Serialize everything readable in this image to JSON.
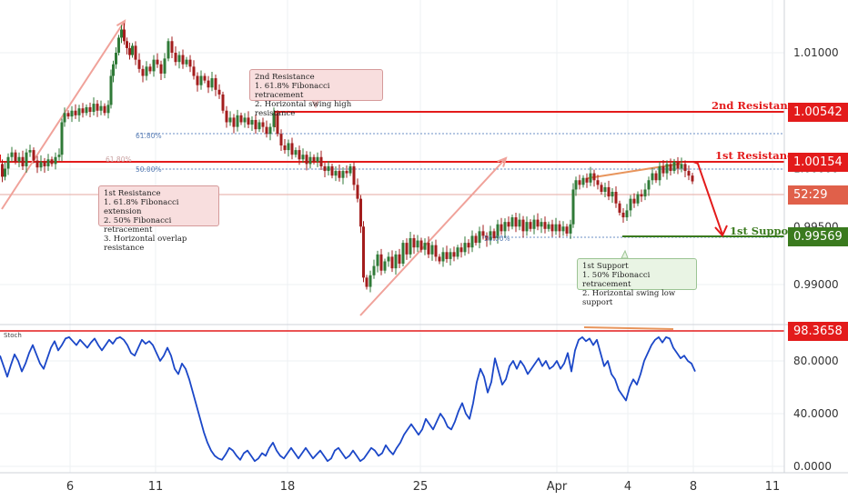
{
  "chart_data": {
    "type": "candlestick",
    "price_axis": {
      "ticks": [
        "1.01000",
        "1.00000",
        "0.99500",
        "0.99000"
      ]
    },
    "stoch_axis": {
      "ticks": [
        "80.0000",
        "40.0000",
        "0.0000"
      ]
    },
    "x_axis": {
      "ticks": [
        "6",
        "11",
        "18",
        "25",
        "Apr",
        "4",
        "8",
        "11"
      ]
    },
    "levels": {
      "resistance2": {
        "label": "2nd Resistance",
        "value": "1.00542",
        "color": "#e31b1b"
      },
      "resistance1": {
        "label": "1st Resistance",
        "value": "1.00154",
        "color": "#e31b1b"
      },
      "support1": {
        "label": "1st Support",
        "value": "0.99569",
        "color": "#3a7a1e"
      },
      "countdown": {
        "value": "52:29",
        "color": "#e0604a"
      },
      "stoch_level": {
        "value": "98.3658",
        "color": "#e31b1b"
      }
    },
    "fib_labels": [
      "61.80%",
      "50.00%",
      "61.80%",
      "50.00%"
    ],
    "annotations": {
      "res2": "2nd Resistance\n1. 61.8% Fibonacci retracement\n2. Horizontal swing high resistance",
      "res1": "1st Resistance\n1. 61.8% Fibonacci extension\n2. 50% Fibonacci retracement\n3. Horizontal overlap resistance",
      "sup1": "1st Support\n1. 50% Fibonacci retracement\n2. Horizontal swing low support"
    },
    "stoch_title": "Stoch",
    "price_path": [
      [
        0,
        1.0004
      ],
      [
        3,
        0.9993
      ],
      [
        6,
        1.0
      ],
      [
        10,
        1.001
      ],
      [
        14,
        1.0014
      ],
      [
        18,
        1.0006
      ],
      [
        22,
        1.001
      ],
      [
        26,
        1.0002
      ],
      [
        30,
        1.0014
      ],
      [
        34,
        1.0016
      ],
      [
        38,
        1.0007
      ],
      [
        42,
        1.0001
      ],
      [
        46,
        1.0006
      ],
      [
        50,
        1.0002
      ],
      [
        54,
        1.0008
      ],
      [
        58,
        1.0004
      ],
      [
        62,
        1.001
      ],
      [
        66,
        1.0012
      ],
      [
        68,
        1.004
      ],
      [
        72,
        1.0048
      ],
      [
        76,
        1.0045
      ],
      [
        80,
        1.005
      ],
      [
        84,
        1.0046
      ],
      [
        88,
        1.0052
      ],
      [
        92,
        1.0048
      ],
      [
        96,
        1.0053
      ],
      [
        100,
        1.0049
      ],
      [
        104,
        1.0056
      ],
      [
        108,
        1.005
      ],
      [
        112,
        1.0054
      ],
      [
        116,
        1.0048
      ],
      [
        120,
        1.0055
      ],
      [
        122,
        1.008
      ],
      [
        125,
        1.009
      ],
      [
        128,
        1.01
      ],
      [
        131,
        1.0113
      ],
      [
        134,
        1.012
      ],
      [
        137,
        1.011
      ],
      [
        140,
        1.0104
      ],
      [
        143,
        1.0098
      ],
      [
        146,
        1.0106
      ],
      [
        150,
        1.0094
      ],
      [
        154,
        1.0086
      ],
      [
        158,
        1.008
      ],
      [
        162,
        1.0088
      ],
      [
        166,
        1.0084
      ],
      [
        170,
        1.0094
      ],
      [
        174,
        1.009
      ],
      [
        178,
        1.0082
      ],
      [
        182,
        1.0095
      ],
      [
        186,
        1.011
      ],
      [
        190,
        1.01
      ],
      [
        194,
        1.0092
      ],
      [
        198,
        1.0098
      ],
      [
        202,
        1.009
      ],
      [
        206,
        1.0094
      ],
      [
        210,
        1.0088
      ],
      [
        214,
        1.008
      ],
      [
        218,
        1.0072
      ],
      [
        222,
        1.008
      ],
      [
        226,
        1.0076
      ],
      [
        230,
        1.007
      ],
      [
        234,
        1.0078
      ],
      [
        238,
        1.0068
      ],
      [
        242,
        1.0064
      ],
      [
        246,
        1.005
      ],
      [
        250,
        1.004
      ],
      [
        254,
        1.0044
      ],
      [
        258,
        1.0036
      ],
      [
        262,
        1.0046
      ],
      [
        266,
        1.004
      ],
      [
        270,
        1.0044
      ],
      [
        274,
        1.0038
      ],
      [
        278,
        1.0042
      ],
      [
        282,
        1.0034
      ],
      [
        286,
        1.004
      ],
      [
        290,
        1.0036
      ],
      [
        294,
        1.003
      ],
      [
        298,
        1.0036
      ],
      [
        302,
        1.0048
      ],
      [
        306,
        1.003
      ],
      [
        310,
        1.002
      ],
      [
        314,
        1.0016
      ],
      [
        318,
        1.0022
      ],
      [
        322,
        1.0012
      ],
      [
        326,
        1.0016
      ],
      [
        330,
        1.0008
      ],
      [
        334,
        1.0012
      ],
      [
        338,
        1.0004
      ],
      [
        342,
        1.001
      ],
      [
        346,
        1.0006
      ],
      [
        350,
        1.001
      ],
      [
        354,
        1.0002
      ],
      [
        358,
        0.9998
      ],
      [
        362,
        1.0002
      ],
      [
        366,
        0.9994
      ],
      [
        370,
        0.9998
      ],
      [
        374,
        0.9992
      ],
      [
        378,
        0.9998
      ],
      [
        382,
        0.9996
      ],
      [
        386,
        1.0002
      ],
      [
        390,
        0.9986
      ],
      [
        394,
        0.9974
      ],
      [
        397,
        0.995
      ],
      [
        400,
        0.9906
      ],
      [
        404,
        0.9898
      ],
      [
        408,
        0.9908
      ],
      [
        412,
        0.9916
      ],
      [
        416,
        0.9926
      ],
      [
        420,
        0.9912
      ],
      [
        424,
        0.992
      ],
      [
        428,
        0.9924
      ],
      [
        432,
        0.9914
      ],
      [
        436,
        0.9926
      ],
      [
        440,
        0.9918
      ],
      [
        444,
        0.9936
      ],
      [
        448,
        0.9926
      ],
      [
        452,
        0.994
      ],
      [
        456,
        0.9932
      ],
      [
        460,
        0.9938
      ],
      [
        464,
        0.993
      ],
      [
        468,
        0.9936
      ],
      [
        472,
        0.9926
      ],
      [
        476,
        0.9934
      ],
      [
        480,
        0.9924
      ],
      [
        484,
        0.992
      ],
      [
        488,
        0.9928
      ],
      [
        492,
        0.9922
      ],
      [
        496,
        0.9928
      ],
      [
        500,
        0.9924
      ],
      [
        504,
        0.9932
      ],
      [
        508,
        0.9928
      ],
      [
        512,
        0.9936
      ],
      [
        516,
        0.9932
      ],
      [
        520,
        0.9942
      ],
      [
        524,
        0.9936
      ],
      [
        528,
        0.9946
      ],
      [
        532,
        0.9942
      ],
      [
        536,
        0.9938
      ],
      [
        540,
        0.9946
      ],
      [
        544,
        0.994
      ],
      [
        548,
        0.9952
      ],
      [
        552,
        0.9946
      ],
      [
        556,
        0.9954
      ],
      [
        560,
        0.995
      ],
      [
        564,
        0.9958
      ],
      [
        568,
        0.995
      ],
      [
        572,
        0.9956
      ],
      [
        576,
        0.9946
      ],
      [
        580,
        0.9954
      ],
      [
        584,
        0.9948
      ],
      [
        588,
        0.9956
      ],
      [
        592,
        0.995
      ],
      [
        596,
        0.9954
      ],
      [
        600,
        0.9948
      ],
      [
        604,
        0.9952
      ],
      [
        608,
        0.9946
      ],
      [
        612,
        0.9952
      ],
      [
        616,
        0.9946
      ],
      [
        620,
        0.995
      ],
      [
        624,
        0.9944
      ],
      [
        628,
        0.9952
      ],
      [
        630,
        0.9982
      ],
      [
        634,
        0.999
      ],
      [
        638,
        0.9986
      ],
      [
        642,
        0.9992
      ],
      [
        646,
        0.9988
      ],
      [
        650,
        0.9996
      ],
      [
        654,
        0.999
      ],
      [
        658,
        0.9986
      ],
      [
        662,
        0.998
      ],
      [
        666,
        0.9984
      ],
      [
        670,
        0.9976
      ],
      [
        674,
        0.998
      ],
      [
        678,
        0.997
      ],
      [
        682,
        0.9962
      ],
      [
        686,
        0.9958
      ],
      [
        690,
        0.9964
      ],
      [
        694,
        0.9974
      ],
      [
        698,
        0.997
      ],
      [
        702,
        0.9978
      ],
      [
        706,
        0.9976
      ],
      [
        710,
        0.9982
      ],
      [
        714,
        0.999
      ],
      [
        718,
        0.9996
      ],
      [
        722,
        0.999
      ],
      [
        726,
        1.0002
      ],
      [
        730,
        0.9996
      ],
      [
        734,
        1.0004
      ],
      [
        738,
        0.9998
      ],
      [
        742,
        1.0006
      ],
      [
        746,
        1.0
      ],
      [
        750,
        1.0004
      ],
      [
        754,
        0.9998
      ],
      [
        758,
        0.9994
      ],
      [
        762,
        0.9989
      ]
    ],
    "stoch_path": [
      [
        0,
        84
      ],
      [
        4,
        76
      ],
      [
        8,
        68
      ],
      [
        12,
        77
      ],
      [
        16,
        85
      ],
      [
        20,
        80
      ],
      [
        24,
        72
      ],
      [
        28,
        78
      ],
      [
        32,
        86
      ],
      [
        36,
        92
      ],
      [
        40,
        85
      ],
      [
        44,
        78
      ],
      [
        48,
        74
      ],
      [
        52,
        82
      ],
      [
        56,
        90
      ],
      [
        60,
        95
      ],
      [
        64,
        88
      ],
      [
        68,
        92
      ],
      [
        72,
        97
      ],
      [
        76,
        98
      ],
      [
        80,
        95
      ],
      [
        84,
        92
      ],
      [
        88,
        96
      ],
      [
        92,
        93
      ],
      [
        96,
        90
      ],
      [
        100,
        94
      ],
      [
        104,
        97
      ],
      [
        108,
        92
      ],
      [
        112,
        88
      ],
      [
        116,
        92
      ],
      [
        120,
        96
      ],
      [
        124,
        93
      ],
      [
        128,
        97
      ],
      [
        132,
        98
      ],
      [
        136,
        96
      ],
      [
        140,
        92
      ],
      [
        144,
        86
      ],
      [
        148,
        84
      ],
      [
        152,
        90
      ],
      [
        156,
        96
      ],
      [
        160,
        93
      ],
      [
        164,
        95
      ],
      [
        168,
        92
      ],
      [
        172,
        86
      ],
      [
        176,
        80
      ],
      [
        180,
        84
      ],
      [
        184,
        90
      ],
      [
        188,
        84
      ],
      [
        192,
        74
      ],
      [
        196,
        70
      ],
      [
        200,
        78
      ],
      [
        204,
        74
      ],
      [
        208,
        66
      ],
      [
        212,
        56
      ],
      [
        216,
        46
      ],
      [
        220,
        36
      ],
      [
        224,
        26
      ],
      [
        228,
        18
      ],
      [
        232,
        12
      ],
      [
        236,
        8
      ],
      [
        240,
        6
      ],
      [
        244,
        5
      ],
      [
        248,
        9
      ],
      [
        252,
        14
      ],
      [
        256,
        12
      ],
      [
        260,
        8
      ],
      [
        264,
        5
      ],
      [
        268,
        10
      ],
      [
        272,
        12
      ],
      [
        276,
        8
      ],
      [
        280,
        4
      ],
      [
        284,
        6
      ],
      [
        288,
        10
      ],
      [
        292,
        8
      ],
      [
        296,
        14
      ],
      [
        300,
        18
      ],
      [
        304,
        12
      ],
      [
        308,
        8
      ],
      [
        312,
        6
      ],
      [
        316,
        10
      ],
      [
        320,
        14
      ],
      [
        324,
        10
      ],
      [
        328,
        6
      ],
      [
        332,
        10
      ],
      [
        336,
        14
      ],
      [
        340,
        10
      ],
      [
        344,
        6
      ],
      [
        348,
        9
      ],
      [
        352,
        12
      ],
      [
        356,
        8
      ],
      [
        360,
        4
      ],
      [
        364,
        6
      ],
      [
        368,
        12
      ],
      [
        372,
        14
      ],
      [
        376,
        10
      ],
      [
        380,
        6
      ],
      [
        384,
        8
      ],
      [
        388,
        12
      ],
      [
        392,
        8
      ],
      [
        396,
        4
      ],
      [
        400,
        6
      ],
      [
        404,
        10
      ],
      [
        408,
        14
      ],
      [
        412,
        12
      ],
      [
        416,
        8
      ],
      [
        420,
        10
      ],
      [
        424,
        16
      ],
      [
        428,
        12
      ],
      [
        432,
        9
      ],
      [
        436,
        14
      ],
      [
        440,
        18
      ],
      [
        444,
        24
      ],
      [
        448,
        28
      ],
      [
        452,
        32
      ],
      [
        456,
        28
      ],
      [
        460,
        24
      ],
      [
        464,
        28
      ],
      [
        468,
        36
      ],
      [
        472,
        32
      ],
      [
        476,
        28
      ],
      [
        480,
        34
      ],
      [
        484,
        40
      ],
      [
        488,
        36
      ],
      [
        492,
        30
      ],
      [
        496,
        28
      ],
      [
        500,
        34
      ],
      [
        504,
        42
      ],
      [
        508,
        48
      ],
      [
        512,
        40
      ],
      [
        516,
        36
      ],
      [
        520,
        48
      ],
      [
        524,
        64
      ],
      [
        528,
        74
      ],
      [
        532,
        68
      ],
      [
        536,
        56
      ],
      [
        540,
        64
      ],
      [
        544,
        82
      ],
      [
        548,
        72
      ],
      [
        552,
        62
      ],
      [
        556,
        66
      ],
      [
        560,
        76
      ],
      [
        564,
        80
      ],
      [
        568,
        74
      ],
      [
        572,
        80
      ],
      [
        576,
        76
      ],
      [
        580,
        70
      ],
      [
        584,
        74
      ],
      [
        588,
        78
      ],
      [
        592,
        82
      ],
      [
        596,
        76
      ],
      [
        600,
        80
      ],
      [
        604,
        74
      ],
      [
        608,
        76
      ],
      [
        612,
        80
      ],
      [
        616,
        74
      ],
      [
        620,
        78
      ],
      [
        624,
        86
      ],
      [
        628,
        72
      ],
      [
        632,
        88
      ],
      [
        636,
        96
      ],
      [
        640,
        98
      ],
      [
        644,
        95
      ],
      [
        648,
        97
      ],
      [
        652,
        92
      ],
      [
        656,
        96
      ],
      [
        660,
        86
      ],
      [
        664,
        76
      ],
      [
        668,
        80
      ],
      [
        672,
        70
      ],
      [
        676,
        66
      ],
      [
        680,
        58
      ],
      [
        684,
        54
      ],
      [
        688,
        50
      ],
      [
        692,
        60
      ],
      [
        696,
        66
      ],
      [
        700,
        62
      ],
      [
        704,
        70
      ],
      [
        708,
        80
      ],
      [
        712,
        86
      ],
      [
        716,
        92
      ],
      [
        720,
        96
      ],
      [
        724,
        98
      ],
      [
        728,
        94
      ],
      [
        732,
        98
      ],
      [
        736,
        97
      ],
      [
        740,
        90
      ],
      [
        744,
        86
      ],
      [
        748,
        82
      ],
      [
        752,
        84
      ],
      [
        756,
        80
      ],
      [
        760,
        78
      ],
      [
        764,
        72
      ]
    ]
  }
}
